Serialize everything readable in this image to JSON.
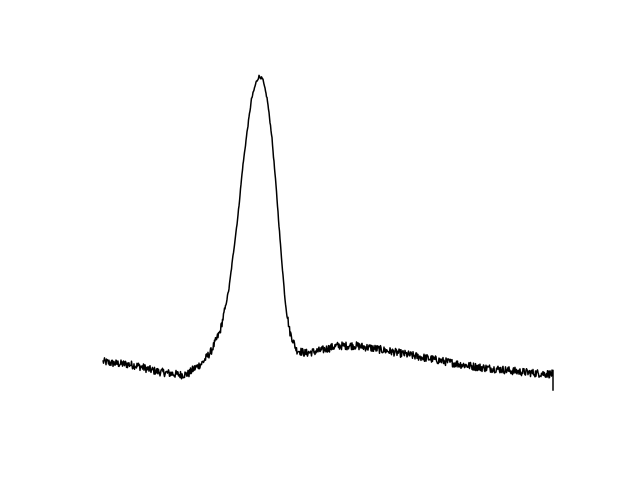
{
  "chart_data": {
    "type": "line",
    "title": "",
    "xlabel": "",
    "ylabel": "",
    "axes_visible": false,
    "grid": false,
    "legend": "none",
    "xlim": [
      0,
      1
    ],
    "ylim": [
      0,
      1
    ],
    "series": [
      {
        "color": "#000000",
        "points": [
          [
            0.0,
            0.14
          ],
          [
            0.02,
            0.135
          ],
          [
            0.04,
            0.133
          ],
          [
            0.06,
            0.131
          ],
          [
            0.08,
            0.126
          ],
          [
            0.1,
            0.117
          ],
          [
            0.12,
            0.11
          ],
          [
            0.14,
            0.106
          ],
          [
            0.16,
            0.102
          ],
          [
            0.175,
            0.1
          ],
          [
            0.19,
            0.103
          ],
          [
            0.2,
            0.116
          ],
          [
            0.22,
            0.135
          ],
          [
            0.24,
            0.17
          ],
          [
            0.26,
            0.23
          ],
          [
            0.27,
            0.29
          ],
          [
            0.28,
            0.36
          ],
          [
            0.29,
            0.47
          ],
          [
            0.3,
            0.58
          ],
          [
            0.31,
            0.72
          ],
          [
            0.32,
            0.83
          ],
          [
            0.33,
            0.93
          ],
          [
            0.34,
            0.98
          ],
          [
            0.347,
            1.0
          ],
          [
            0.355,
            0.99
          ],
          [
            0.365,
            0.93
          ],
          [
            0.375,
            0.82
          ],
          [
            0.385,
            0.66
          ],
          [
            0.395,
            0.48
          ],
          [
            0.405,
            0.32
          ],
          [
            0.415,
            0.23
          ],
          [
            0.43,
            0.175
          ],
          [
            0.45,
            0.165
          ],
          [
            0.48,
            0.172
          ],
          [
            0.52,
            0.187
          ],
          [
            0.56,
            0.188
          ],
          [
            0.6,
            0.18
          ],
          [
            0.64,
            0.17
          ],
          [
            0.68,
            0.16
          ],
          [
            0.72,
            0.15
          ],
          [
            0.76,
            0.14
          ],
          [
            0.8,
            0.13
          ],
          [
            0.84,
            0.122
          ],
          [
            0.88,
            0.117
          ],
          [
            0.92,
            0.11
          ],
          [
            0.96,
            0.105
          ],
          [
            1.0,
            0.102
          ]
        ],
        "noise_amplitude": 0.012,
        "end_drop": 0.05
      }
    ]
  }
}
